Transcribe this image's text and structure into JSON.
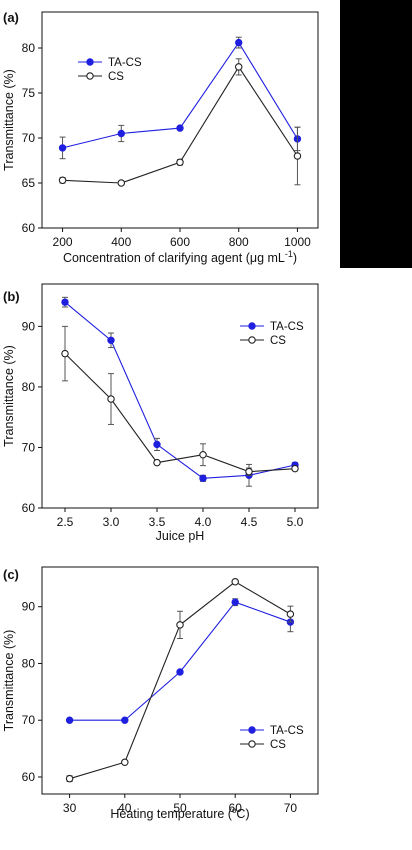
{
  "colors": {
    "ta_cs": "#1f1fe0",
    "cs": "#222222",
    "errorbar": "#555555"
  },
  "chart_data": [
    {
      "type": "line",
      "panel_label": "(a)",
      "xlabel": "Concentration of clarifying agent (μg mL",
      "xlabel_sup": "-1",
      "xlabel_close": ")",
      "ylabel": "Transmittance (%)",
      "x": [
        200,
        400,
        600,
        800,
        1000
      ],
      "xlim": [
        130,
        1070
      ],
      "ylim": [
        60,
        84
      ],
      "xticks": [
        200,
        400,
        600,
        800,
        1000
      ],
      "yticks": [
        60,
        65,
        70,
        75,
        80
      ],
      "legend_position": "top-left",
      "series": [
        {
          "name": "TA-CS",
          "marker": "filled-circle",
          "values": [
            68.9,
            70.5,
            71.1,
            80.6,
            69.9
          ],
          "errors": [
            1.2,
            0.9,
            0.2,
            0.6,
            1.3
          ]
        },
        {
          "name": "CS",
          "marker": "open-circle",
          "values": [
            65.3,
            65.0,
            67.3,
            77.9,
            68.0
          ],
          "errors": [
            0.3,
            0.2,
            0.3,
            0.9,
            3.2
          ]
        }
      ]
    },
    {
      "type": "line",
      "panel_label": "(b)",
      "xlabel": "Juice pH",
      "ylabel": "Transmittance (%)",
      "x": [
        2.5,
        3.0,
        3.5,
        4.0,
        4.5,
        5.0
      ],
      "xlim": [
        2.25,
        5.25
      ],
      "ylim": [
        60,
        97
      ],
      "xticks": [
        2.5,
        3.0,
        3.5,
        4.0,
        4.5,
        5.0
      ],
      "yticks": [
        60,
        70,
        80,
        90
      ],
      "legend_position": "top-right",
      "series": [
        {
          "name": "TA-CS",
          "marker": "filled-circle",
          "values": [
            94.0,
            87.7,
            70.5,
            64.9,
            65.4,
            67.1
          ],
          "errors": [
            0.8,
            1.2,
            1.0,
            0.5,
            1.8,
            0.4
          ]
        },
        {
          "name": "CS",
          "marker": "open-circle",
          "values": [
            85.5,
            78.0,
            67.5,
            68.8,
            66.0,
            66.5
          ],
          "errors": [
            4.5,
            4.2,
            0.3,
            1.8,
            0.6,
            0.3
          ]
        }
      ]
    },
    {
      "type": "line",
      "panel_label": "(c)",
      "xlabel": "Heating temperature (",
      "xlabel_deg": "o",
      "xlabel_close": "C)",
      "ylabel": "Transmittance (%)",
      "x": [
        30,
        40,
        50,
        60,
        70
      ],
      "xlim": [
        25,
        75
      ],
      "ylim": [
        57,
        97
      ],
      "xticks": [
        30,
        40,
        50,
        60,
        70
      ],
      "yticks": [
        60,
        70,
        80,
        90
      ],
      "legend_position": "bottom-right",
      "series": [
        {
          "name": "TA-CS",
          "marker": "filled-circle",
          "values": [
            70.0,
            70.0,
            78.5,
            90.8,
            87.3
          ],
          "errors": [
            0.2,
            0.0,
            0.0,
            0.6,
            1.7
          ]
        },
        {
          "name": "CS",
          "marker": "open-circle",
          "values": [
            59.7,
            62.6,
            86.8,
            94.4,
            88.7
          ],
          "errors": [
            0.5,
            0.0,
            2.4,
            0.0,
            1.4
          ]
        }
      ]
    }
  ]
}
